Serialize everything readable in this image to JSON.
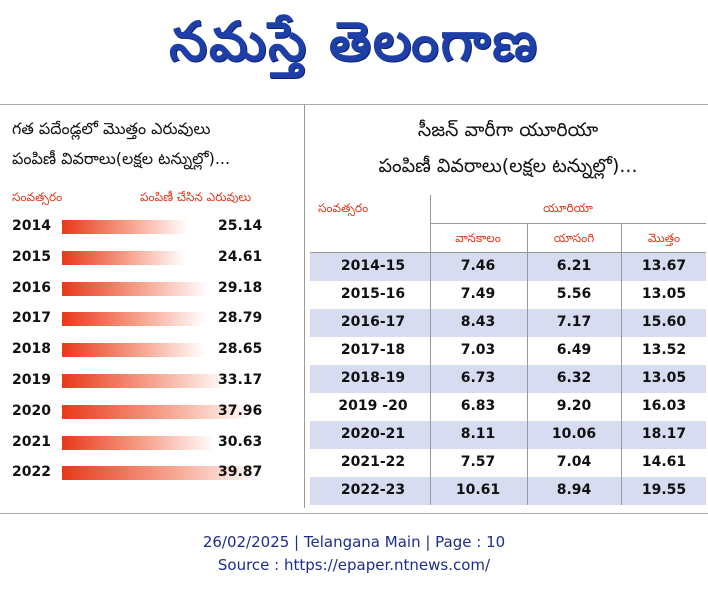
{
  "masthead": {
    "title": "నమస్తే తెలంగాణ"
  },
  "left": {
    "title_line1": "గత పదేండ్లలో మొత్తం ఎరువులు",
    "title_line2": "పంపిణీ వివరాలు(లక్షల టన్నుల్లో)...",
    "header_year": "సంవత్సరం",
    "header_value": "పంపిణీ చేసిన ఎరువులు",
    "rows": [
      {
        "year": "2014",
        "value": "25.14"
      },
      {
        "year": "2015",
        "value": "24.61"
      },
      {
        "year": "2016",
        "value": "29.18"
      },
      {
        "year": "2017",
        "value": "28.79"
      },
      {
        "year": "2018",
        "value": "28.65"
      },
      {
        "year": "2019",
        "value": "33.17"
      },
      {
        "year": "2020",
        "value": "37.96"
      },
      {
        "year": "2021",
        "value": "30.63"
      },
      {
        "year": "2022",
        "value": "39.87"
      }
    ]
  },
  "right": {
    "title_line1": "సీజన్ వారీగా యూరియా",
    "title_line2": "పంపిణీ వివరాలు(లక్షల టన్నుల్లో)...",
    "header_year": "సంవత్సరం",
    "header_group": "యూరియా",
    "col_vanakalam": "వానకాలం",
    "col_yasangi": "యాసంగి",
    "col_total": "మొత్తం",
    "rows": [
      {
        "year": "2014-15",
        "vanakalam": "7.46",
        "yasangi": "6.21",
        "total": "13.67"
      },
      {
        "year": "2015-16",
        "vanakalam": "7.49",
        "yasangi": "5.56",
        "total": "13.05"
      },
      {
        "year": "2016-17",
        "vanakalam": "8.43",
        "yasangi": "7.17",
        "total": "15.60"
      },
      {
        "year": "2017-18",
        "vanakalam": "7.03",
        "yasangi": "6.49",
        "total": "13.52"
      },
      {
        "year": "2018-19",
        "vanakalam": "6.73",
        "yasangi": "6.32",
        "total": "13.05"
      },
      {
        "year": "2019 -20",
        "vanakalam": "6.83",
        "yasangi": "9.20",
        "total": "16.03"
      },
      {
        "year": "2020-21",
        "vanakalam": "8.11",
        "yasangi": "10.06",
        "total": "18.17"
      },
      {
        "year": "2021-22",
        "vanakalam": "7.57",
        "yasangi": "7.04",
        "total": "14.61"
      },
      {
        "year": "2022-23",
        "vanakalam": "10.61",
        "yasangi": "8.94",
        "total": "19.55"
      }
    ]
  },
  "footer": {
    "line1": "26/02/2025 | Telangana Main | Page : 10",
    "line2": "Source : https://epaper.ntnews.com/"
  }
}
